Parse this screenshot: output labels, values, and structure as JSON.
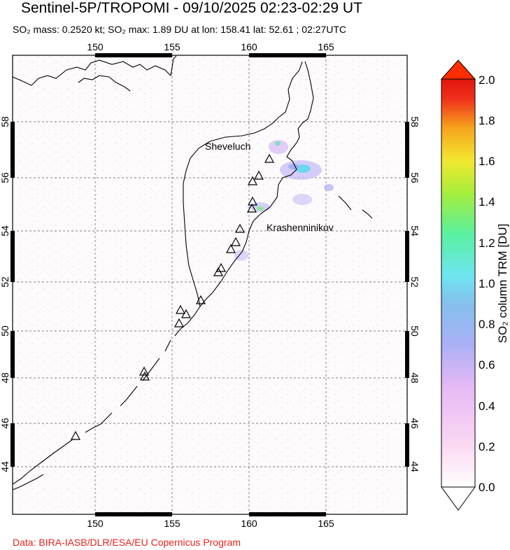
{
  "header": {
    "title": "Sentinel-5P/TROPOMI - 09/10/2025 02:23-02:29 UT",
    "subtitle": "SO₂ mass: 0.2520 kt; SO₂ max: 1.89 DU at lon: 158.41 lat: 52.61 ; 02:27UTC"
  },
  "map": {
    "lon_range": [
      145,
      170
    ],
    "lat_range": [
      42.5,
      60.5
    ],
    "lon_ticks": [
      "150",
      "155",
      "160",
      "165"
    ],
    "lat_ticks": [
      "44",
      "46",
      "48",
      "50",
      "52",
      "54",
      "56",
      "58"
    ],
    "volcano_labels": {
      "sheveluch": "Sheveluch",
      "krasheninnikov": "Krashenninikov"
    }
  },
  "colorbar": {
    "label": "SO₂ column TRM [DU]",
    "ticks": [
      "0.0",
      "0.2",
      "0.4",
      "0.6",
      "0.8",
      "1.0",
      "1.2",
      "1.4",
      "1.6",
      "1.8",
      "2.0"
    ],
    "colors": [
      "#ffffff",
      "#fbd9f2",
      "#e4b8f5",
      "#aab0f5",
      "#84c0ee",
      "#6ee6f0",
      "#59f0a0",
      "#a6ee3c",
      "#f2e830",
      "#f6a41c",
      "#f0321c",
      "#e0140c"
    ]
  },
  "credit": "Data: BIRA-IASB/DLR/ESA/EU Copernicus Program"
}
